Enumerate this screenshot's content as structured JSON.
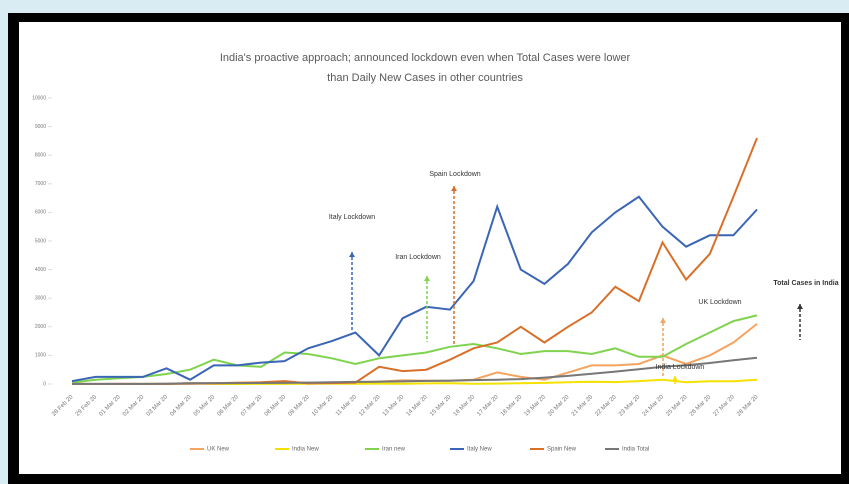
{
  "chart_data": {
    "type": "line",
    "title": "India's proactive approach; announced lockdown even when Total Cases were lower",
    "subtitle": "than Daily New Cases in other countries",
    "categories": [
      "28 Feb 20",
      "29 Feb 20",
      "01 Mar 20",
      "02 Mar 20",
      "03 Mar 20",
      "04 Mar 20",
      "05 Mar 20",
      "06 Mar 20",
      "07 Mar 20",
      "08 Mar 20",
      "09 Mar 20",
      "10 Mar 20",
      "11 Mar 20",
      "12 Mar 20",
      "13 Mar 20",
      "14 Mar 20",
      "15 Mar 20",
      "16 Mar 20",
      "17 Mar 20",
      "18 Mar 20",
      "19 Mar 20",
      "20 Mar 20",
      "21 Mar 20",
      "22 Mar 20",
      "23 Mar 20",
      "24 Mar 20",
      "25 Mar 20",
      "26 Mar 20",
      "27 Mar 20",
      "28 Mar 20"
    ],
    "series": [
      {
        "name": "UK New",
        "color": "#f4a460",
        "values": [
          2,
          3,
          12,
          4,
          11,
          34,
          29,
          48,
          43,
          67,
          46,
          50,
          52,
          83,
          134,
          117,
          120,
          150,
          407,
          250,
          150,
          400,
          650,
          650,
          700,
          1000,
          700,
          1000,
          1450,
          2100
        ]
      },
      {
        "name": "India New",
        "color": "#f5e100",
        "values": [
          0,
          0,
          0,
          2,
          1,
          22,
          2,
          1,
          3,
          5,
          9,
          15,
          6,
          13,
          9,
          20,
          23,
          12,
          14,
          28,
          40,
          63,
          78,
          68,
          100,
          150,
          64,
          94,
          97,
          150
        ]
      },
      {
        "name": "Iran new",
        "color": "#7fd34e",
        "values": [
          50,
          150,
          200,
          250,
          350,
          500,
          850,
          650,
          600,
          1100,
          1050,
          900,
          700,
          900,
          1000,
          1100,
          1300,
          1400,
          1250,
          1050,
          1150,
          1150,
          1050,
          1250,
          950,
          950,
          1400,
          1800,
          2200,
          2400
        ]
      },
      {
        "name": "Italy New",
        "color": "#3a66b5",
        "values": [
          100,
          250,
          250,
          250,
          550,
          150,
          650,
          650,
          750,
          800,
          1250,
          1500,
          1800,
          1000,
          2300,
          2700,
          2600,
          3600,
          6200,
          4000,
          3500,
          4200,
          5300,
          6000,
          6550,
          5500,
          4800,
          5200,
          5200,
          6100
        ]
      },
      {
        "name": "Spain New",
        "color": "#d9702a",
        "values": [
          0,
          0,
          0,
          0,
          5,
          10,
          20,
          40,
          60,
          100,
          20,
          30,
          50,
          600,
          450,
          500,
          850,
          1250,
          1450,
          2000,
          1450,
          2000,
          2500,
          3400,
          2900,
          4950,
          3650,
          4550,
          6550,
          8600
        ]
      },
      {
        "name": "India Total",
        "color": "#777777",
        "values": [
          3,
          3,
          3,
          5,
          6,
          28,
          30,
          31,
          34,
          39,
          48,
          62,
          73,
          82,
          91,
          107,
          114,
          137,
          151,
          173,
          223,
          283,
          360,
          433,
          519,
          606,
          657,
          735,
          830,
          918
        ]
      }
    ],
    "annotations": [
      "Italy Lockdown",
      "Iran Lockdown",
      "Spain Lockdown",
      "UK Lockdown",
      "India Lockdown",
      "Total Cases in India"
    ],
    "ylim": [
      0,
      10000
    ],
    "yticks": [
      0,
      1000,
      2000,
      3000,
      4000,
      5000,
      6000,
      7000,
      8000,
      9000,
      10000
    ]
  }
}
